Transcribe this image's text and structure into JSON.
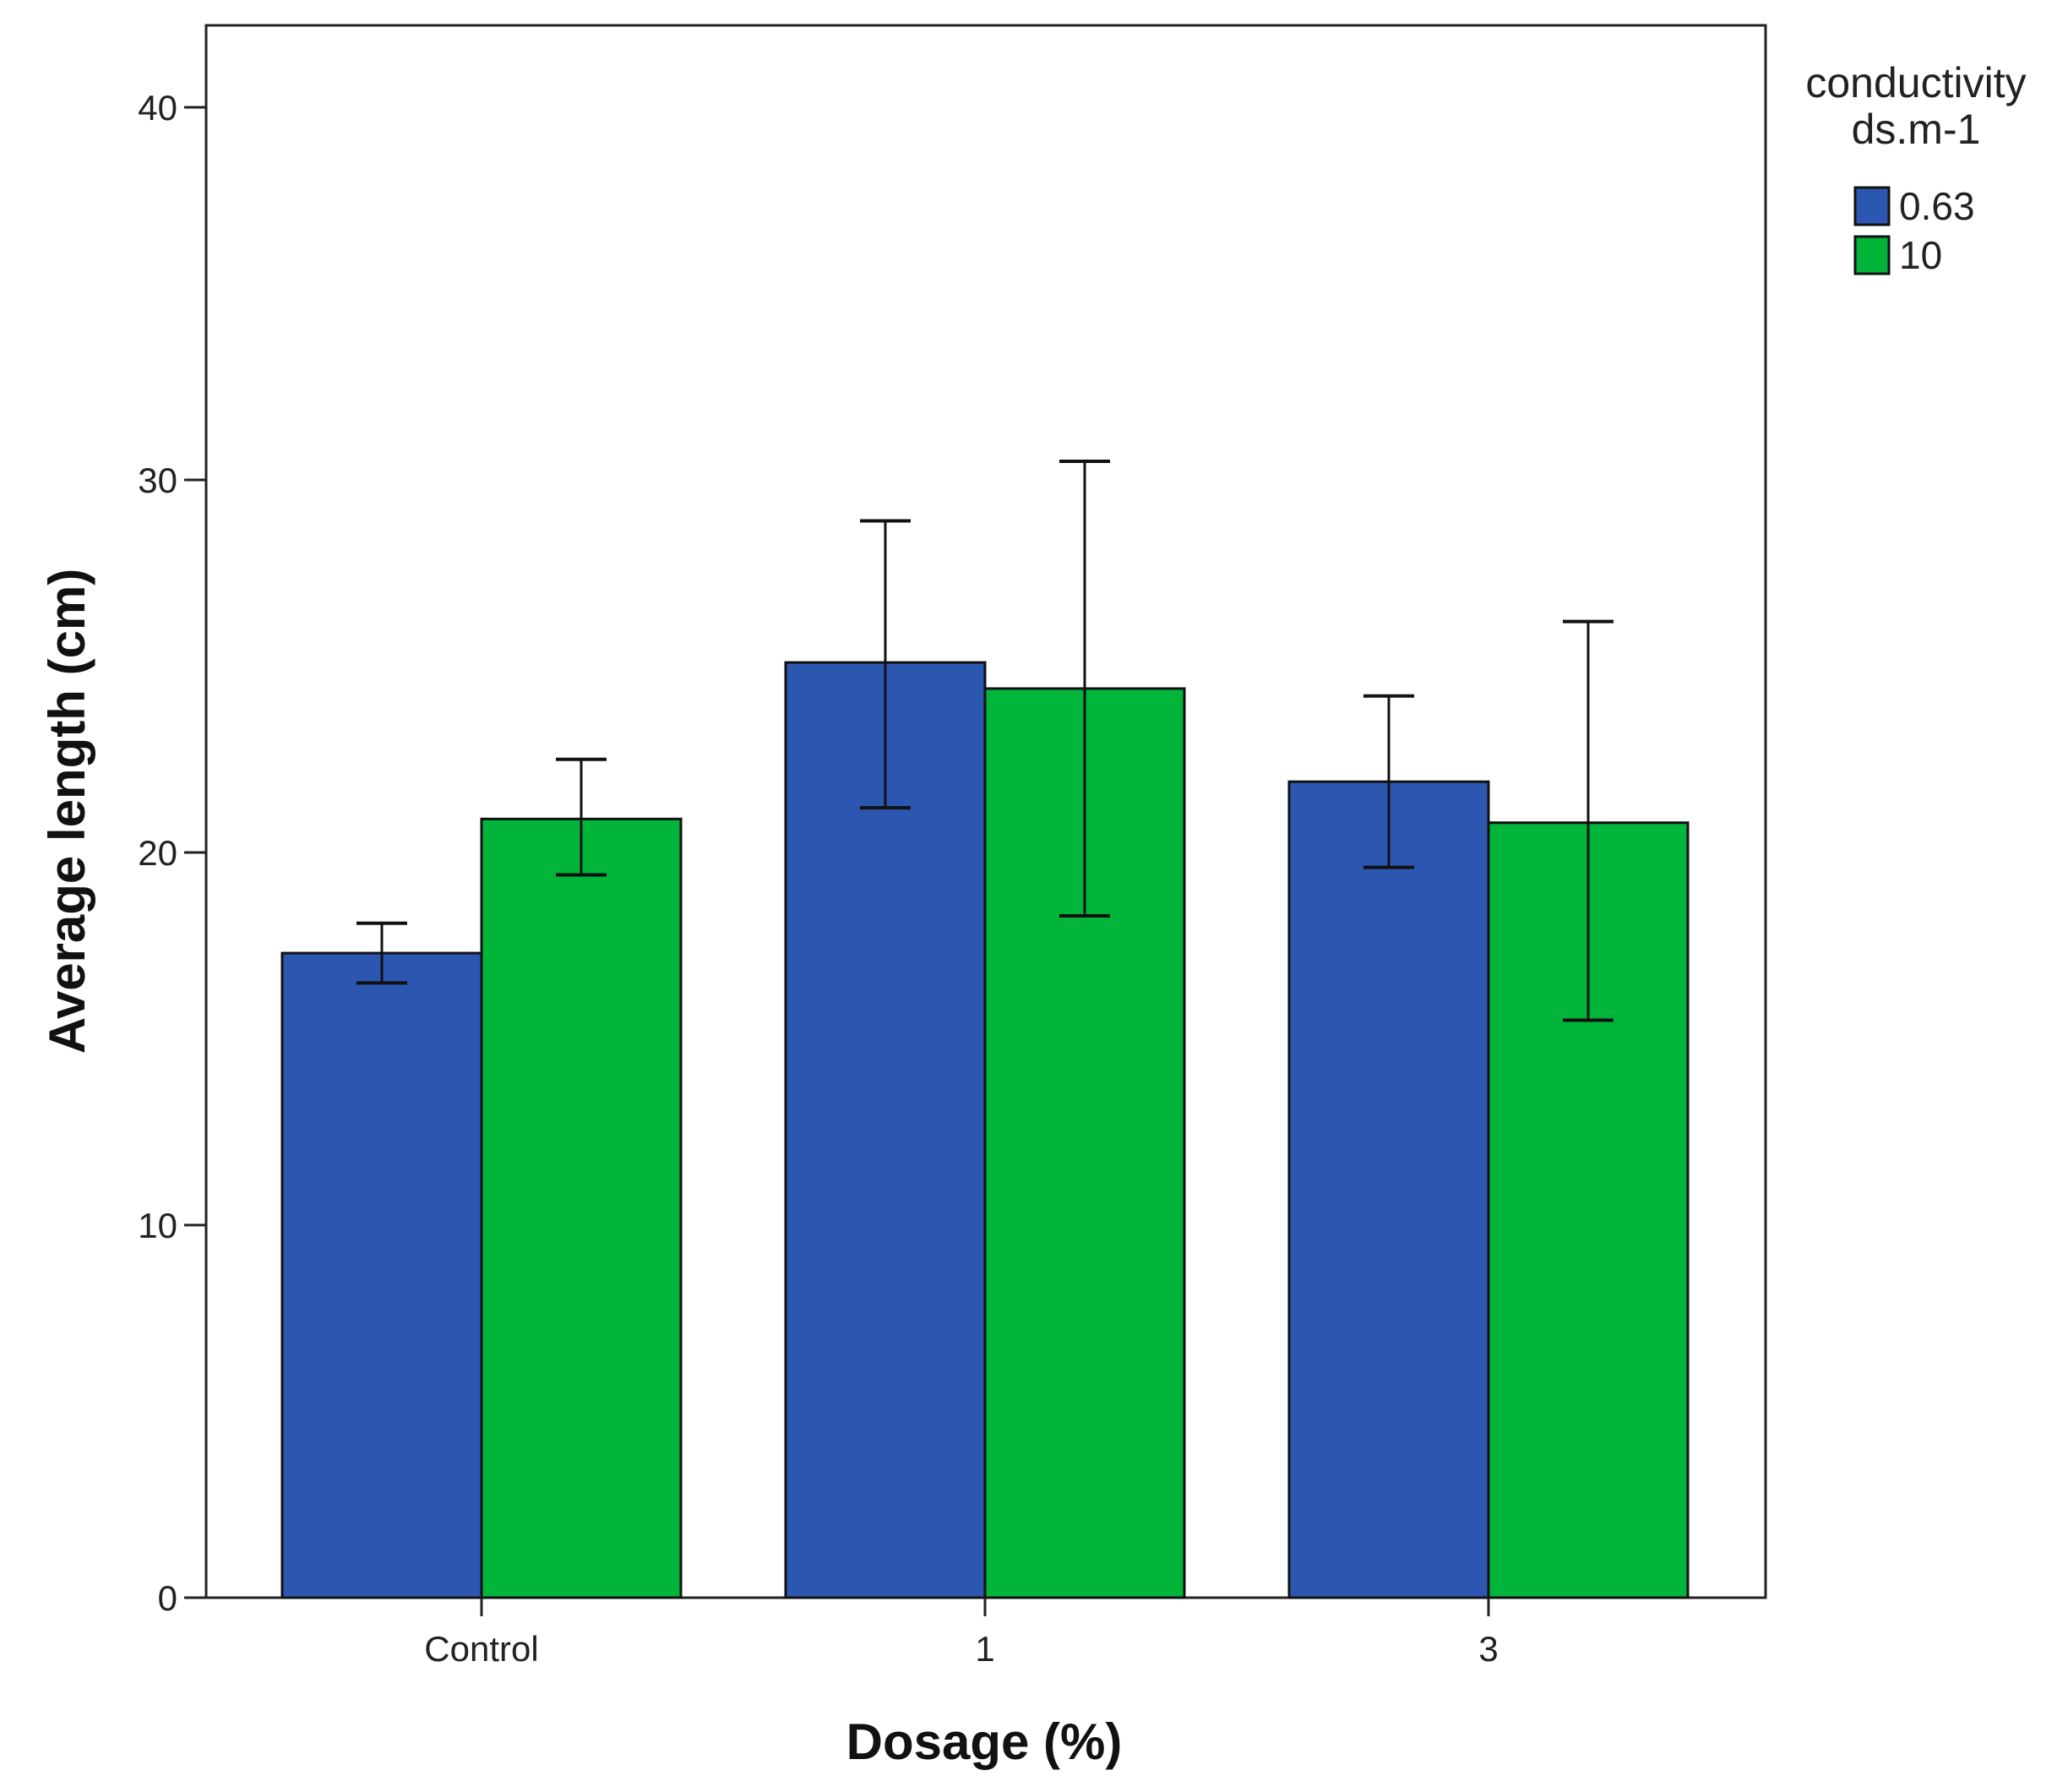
{
  "chart_data": {
    "type": "bar",
    "title": "",
    "xlabel": "Dosage (%)",
    "ylabel": "Average length (cm)",
    "categories": [
      "Control",
      "1",
      "3"
    ],
    "ylim": [
      0,
      42.2
    ],
    "yticks": [
      0,
      10,
      20,
      30,
      40
    ],
    "grid": false,
    "legend": {
      "title_lines": [
        "conductivity",
        "ds.m-1"
      ],
      "position": "top-right, outside plot"
    },
    "series": [
      {
        "name": "0.63",
        "color": "#2c57b0",
        "values": [
          17.3,
          25.1,
          21.9
        ],
        "error_low": [
          16.5,
          21.2,
          19.6
        ],
        "error_high": [
          18.1,
          28.9,
          24.2
        ]
      },
      {
        "name": "10",
        "color": "#00b53a",
        "values": [
          20.9,
          24.4,
          20.8
        ],
        "error_low": [
          19.4,
          18.3,
          15.5
        ],
        "error_high": [
          22.5,
          30.5,
          26.2
        ]
      }
    ]
  }
}
